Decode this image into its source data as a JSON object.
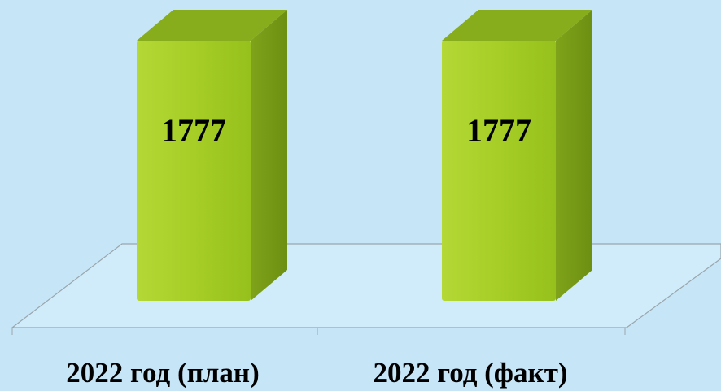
{
  "chart_data": {
    "type": "bar3d",
    "categories": [
      "2022 год (план)",
      "2022 год (факт)"
    ],
    "values": [
      1777,
      1777
    ],
    "color": "#a4cc2a"
  }
}
